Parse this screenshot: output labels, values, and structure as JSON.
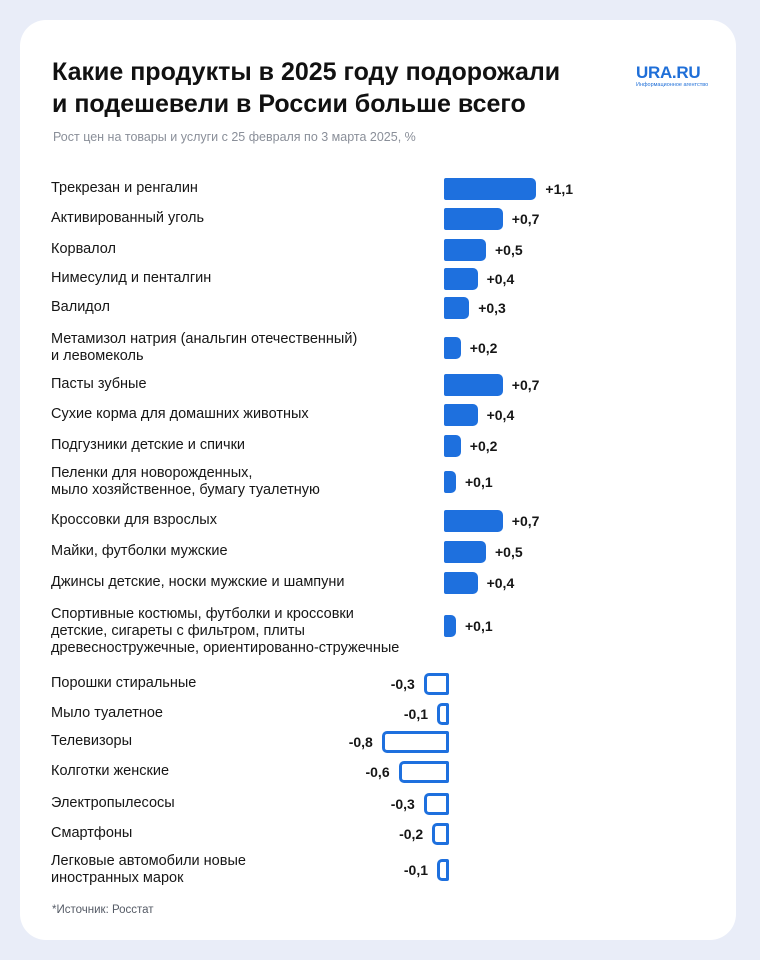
{
  "header": {
    "title_line1": "Какие продукты в 2025 году подорожали",
    "title_line2": "и подешевели в России больше всего",
    "subtitle": "Рост цен на товары и услуги с 25 февраля по 3 марта 2025, %"
  },
  "logo": {
    "name": "URA.RU",
    "tagline": "Информационное агентство"
  },
  "source": "*Источник: Росстат",
  "colors": {
    "accent": "#1e70de",
    "text": "#161616",
    "background": "#e9edf8"
  },
  "chart_data": {
    "type": "bar",
    "orientation": "horizontal",
    "title": "Какие продукты в 2025 году подорожали и подешевели в России больше всего",
    "subtitle": "Рост цен на товары и услуги с 25 февраля по 3 марта 2025, %",
    "unit": "%",
    "value_labels": true,
    "items": [
      {
        "lines": [
          "Трекрезан и ренгалин"
        ],
        "value": 1.1,
        "label": "+1,1"
      },
      {
        "lines": [
          "Активированный уголь"
        ],
        "value": 0.7,
        "label": "+0,7"
      },
      {
        "lines": [
          "Корвалол"
        ],
        "value": 0.5,
        "label": "+0,5"
      },
      {
        "lines": [
          "Нимесулид и пенталгин"
        ],
        "value": 0.4,
        "label": "+0,4"
      },
      {
        "lines": [
          "Валидол"
        ],
        "value": 0.3,
        "label": "+0,3"
      },
      {
        "lines": [
          "Метамизол натрия (анальгин отечественный)",
          "и левомеколь"
        ],
        "value": 0.2,
        "label": "+0,2"
      },
      {
        "lines": [
          "Пасты зубные"
        ],
        "value": 0.7,
        "label": "+0,7"
      },
      {
        "lines": [
          "Сухие корма для домашних животных"
        ],
        "value": 0.4,
        "label": "+0,4"
      },
      {
        "lines": [
          "Подгузники детские и спички"
        ],
        "value": 0.2,
        "label": "+0,2"
      },
      {
        "lines": [
          "Пеленки для новорожденных,",
          "мыло хозяйственное, бумагу туалетную"
        ],
        "value": 0.1,
        "label": "+0,1"
      },
      {
        "lines": [
          "Кроссовки для взрослых"
        ],
        "value": 0.7,
        "label": "+0,7"
      },
      {
        "lines": [
          "Майки, футболки мужские"
        ],
        "value": 0.5,
        "label": "+0,5"
      },
      {
        "lines": [
          "Джинсы детские, носки мужские и шампуни"
        ],
        "value": 0.4,
        "label": "+0,4"
      },
      {
        "lines": [
          "Спортивные костюмы, футболки и кроссовки",
          "детские, сигареты с фильтром, плиты",
          "древесностружечные, ориентированно-стружечные"
        ],
        "value": 0.1,
        "label": "+0,1"
      },
      {
        "lines": [
          "Порошки стиральные"
        ],
        "value": -0.3,
        "label": "-0,3"
      },
      {
        "lines": [
          "Мыло туалетное"
        ],
        "value": -0.1,
        "label": "-0,1"
      },
      {
        "lines": [
          "Телевизоры"
        ],
        "value": -0.8,
        "label": "-0,8"
      },
      {
        "lines": [
          "Колготки женские"
        ],
        "value": -0.6,
        "label": "-0,6"
      },
      {
        "lines": [
          "Электропылесосы"
        ],
        "value": -0.3,
        "label": "-0,3"
      },
      {
        "lines": [
          "Смартфоны"
        ],
        "value": -0.2,
        "label": "-0,2"
      },
      {
        "lines": [
          "Легковые автомобили новые",
          "иностранных марок"
        ],
        "value": -0.1,
        "label": "-0,1"
      }
    ]
  }
}
